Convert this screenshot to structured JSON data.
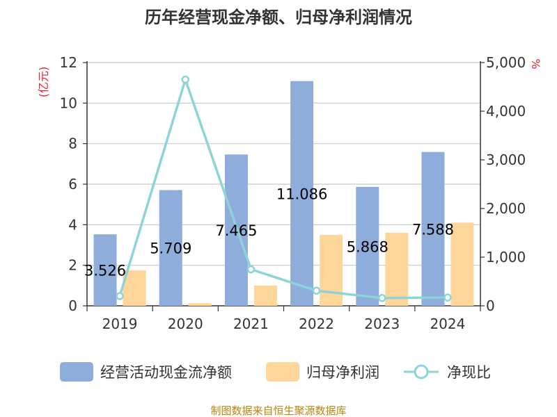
{
  "chart_data": {
    "type": "bar",
    "title": "历年经营现金净额、归母净利润情况",
    "categories": [
      "2019",
      "2020",
      "2021",
      "2022",
      "2023",
      "2024"
    ],
    "y_left": {
      "unit": "(亿元)",
      "ylim": [
        0,
        12
      ],
      "ticks": [
        "0",
        "2",
        "4",
        "6",
        "8",
        "10",
        "12"
      ]
    },
    "y_right": {
      "unit": "%",
      "ylim": [
        0,
        5000
      ],
      "ticks": [
        "0",
        "1,000",
        "2,000",
        "3,000",
        "4,000",
        "5,000"
      ]
    },
    "series": [
      {
        "name": "经营活动现金流净额",
        "type": "bar",
        "axis": "left",
        "color": "#8eaddb",
        "values": [
          3.526,
          5.709,
          7.465,
          11.086,
          5.868,
          7.588
        ],
        "labels": [
          "3.526",
          "5.709",
          "7.465",
          "11.086",
          "5.868",
          "7.588"
        ]
      },
      {
        "name": "归母净利润",
        "type": "bar",
        "axis": "left",
        "color": "#ffd699",
        "values": [
          1.75,
          0.13,
          1.0,
          3.5,
          3.6,
          4.1
        ]
      },
      {
        "name": "净现比",
        "type": "line",
        "axis": "right",
        "color": "#8dd3d8",
        "values": [
          200,
          4650,
          750,
          310,
          160,
          170
        ]
      }
    ],
    "grid": true,
    "legend_position": "bottom"
  },
  "source": "制图数据来自恒生聚源数据库"
}
